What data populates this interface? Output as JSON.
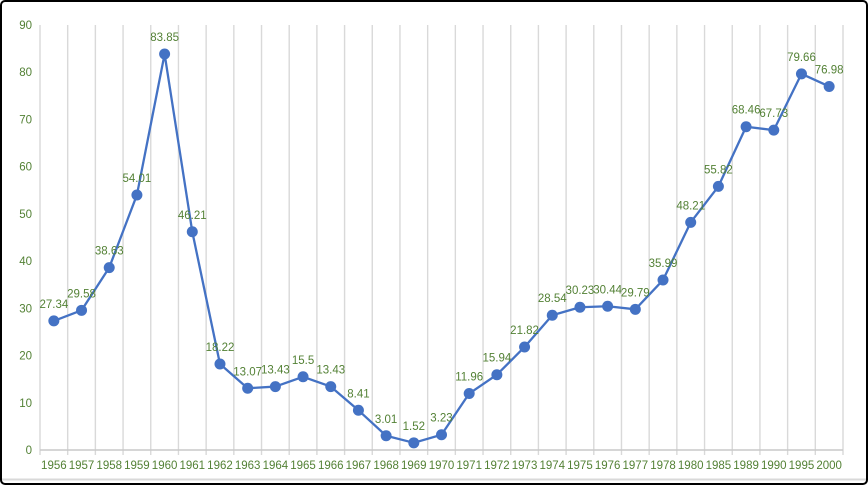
{
  "chart_data": {
    "type": "line",
    "title": "",
    "xlabel": "",
    "ylabel": "",
    "legend_position": "none",
    "grid": "vertical",
    "categories": [
      "1956",
      "1957",
      "1958",
      "1959",
      "1960",
      "1961",
      "1962",
      "1963",
      "1964",
      "1965",
      "1966",
      "1967",
      "1968",
      "1969",
      "1970",
      "1971",
      "1972",
      "1973",
      "1974",
      "1975",
      "1976",
      "1977",
      "1978",
      "1980",
      "1985",
      "1989",
      "1990",
      "1995",
      "2000"
    ],
    "values": [
      27.34,
      29.58,
      38.63,
      54.01,
      83.85,
      46.21,
      18.22,
      13.07,
      13.43,
      15.5,
      13.43,
      8.41,
      3.01,
      1.52,
      3.23,
      11.96,
      15.94,
      21.82,
      28.54,
      30.23,
      30.44,
      29.79,
      35.99,
      48.21,
      55.82,
      68.46,
      67.73,
      79.66,
      76.98
    ],
    "data_labels": [
      "27.34",
      "29.58",
      "38.63",
      "54.01",
      "83.85",
      "46.21",
      "18.22",
      "13.07",
      "13.43",
      "15.5",
      "13.43",
      "8.41",
      "3.01",
      "1.52",
      "3.23",
      "11.96",
      "15.94",
      "21.82",
      "28.54",
      "30.23",
      "30.44",
      "29.79",
      "35.99",
      "48.21",
      "55.82",
      "68.46",
      "67.73",
      "79.66",
      "76.98"
    ],
    "y_ticks": [
      0,
      10,
      20,
      30,
      40,
      50,
      60,
      70,
      80,
      90
    ],
    "ylim": [
      0,
      90
    ],
    "colors": {
      "line": "#4472C4",
      "marker": "#4472C4",
      "data_label_text": "#538135",
      "axis_tick_text": "#538135",
      "gridline": "#D9D9D9",
      "axis_line": "#C9C9C9",
      "frame_border": "#000000",
      "background": "#FFFFFF"
    }
  }
}
